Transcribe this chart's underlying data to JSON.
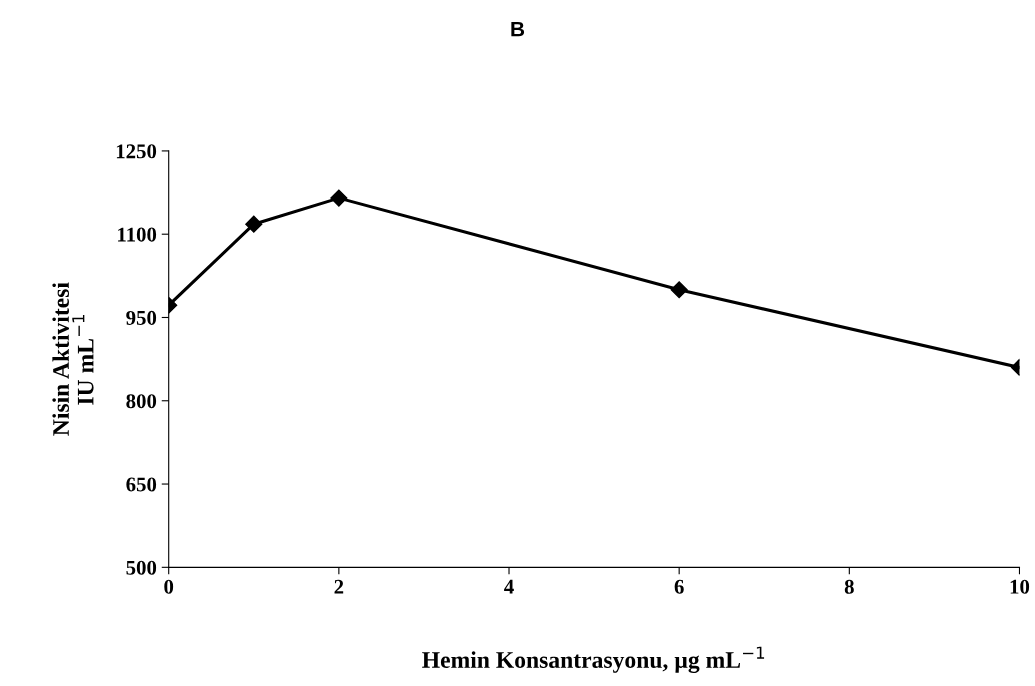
{
  "chart_data": {
    "type": "line",
    "title": "B",
    "xlabel": "Hemin Konsantrasyonu, µg mL$^{−1}$",
    "ylabel": "Nisin Aktivitesi\nIU mL$^{−1}$",
    "x": [
      0,
      1,
      2,
      6,
      10
    ],
    "series": [
      {
        "color": "#000000",
        "values": [
          972,
          1118,
          1165,
          1000,
          860
        ]
      }
    ],
    "xlim": [
      0,
      10
    ],
    "xticks": [
      0,
      2,
      4,
      6,
      8,
      10
    ],
    "ylim": [
      500,
      1250
    ],
    "yticks": [
      500,
      650,
      800,
      950,
      1100,
      1250
    ],
    "marker": "diamond",
    "line_style": "solid",
    "grid": false,
    "legend": false
  }
}
